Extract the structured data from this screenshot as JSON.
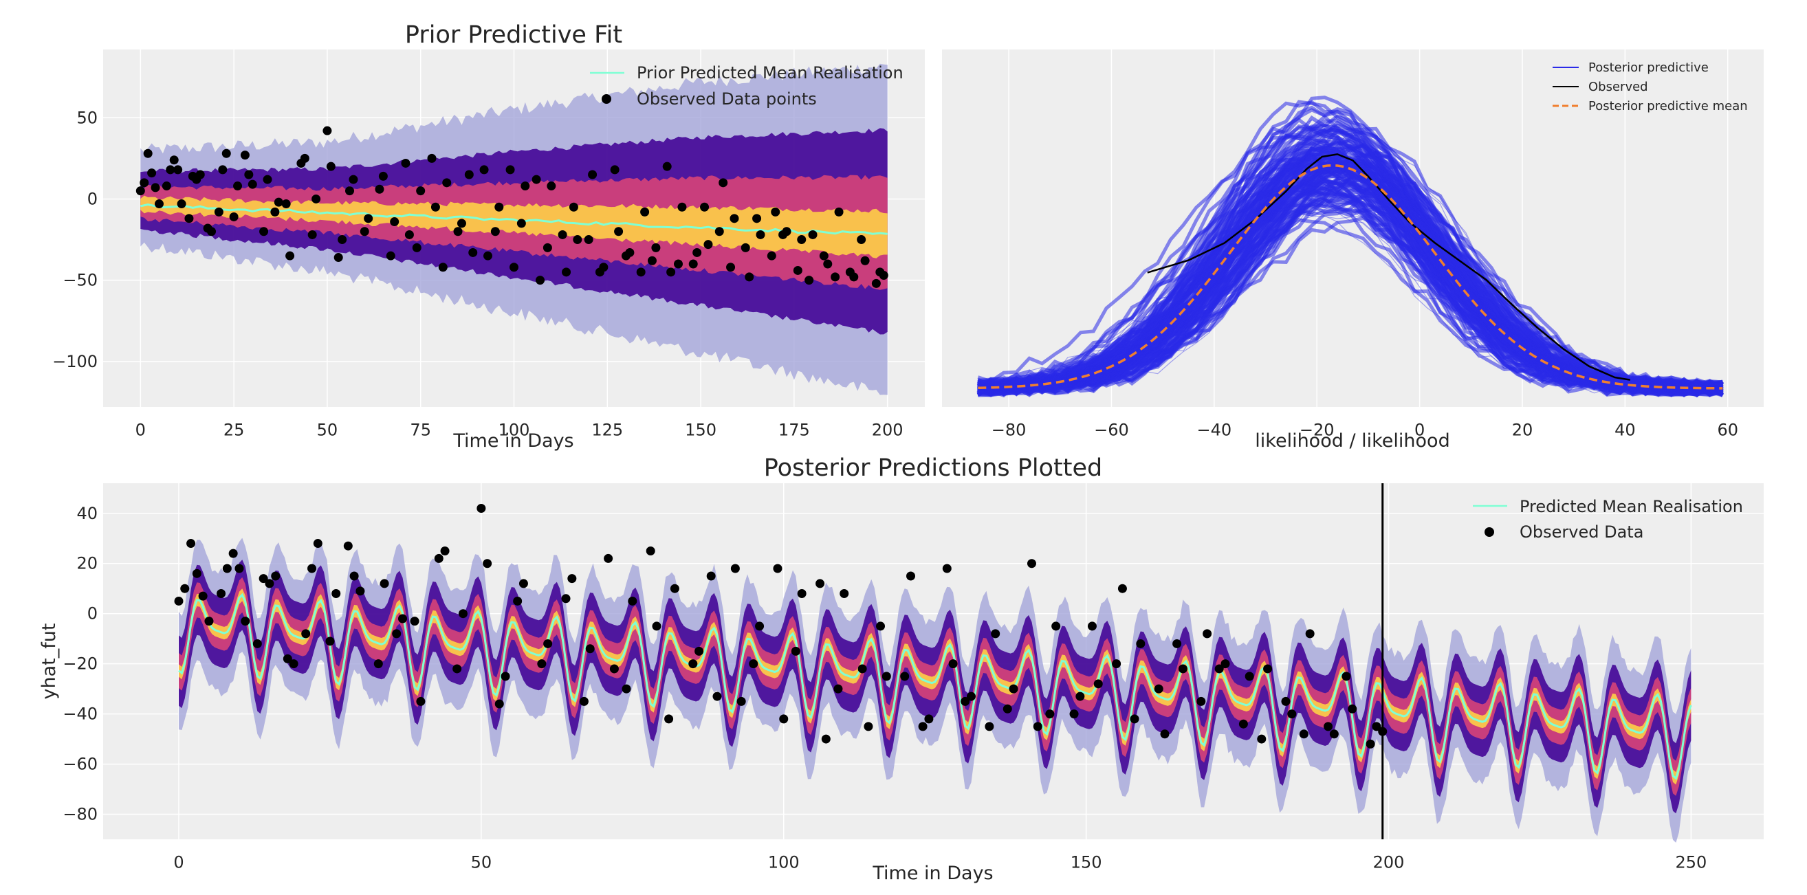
{
  "colors": {
    "panel_bg": "#eeeeee",
    "grid": "#ffffff",
    "mean_line": "#7fffd4",
    "observed": "#000000",
    "ppc_sample": "#2a2ae8",
    "ppc_mean": "#f07f2f",
    "fan_outer": "#9fa0d8",
    "fan_mid": "#4a0f9a",
    "fan_inner": "#d0407a",
    "fan_center": "#fcc84a"
  },
  "chart_data": [
    {
      "id": "prior",
      "type": "line",
      "title": "Prior Predictive Fit",
      "xlabel": "Time in Days",
      "ylabel": "",
      "xlim": [
        -10,
        210
      ],
      "ylim": [
        -128,
        92
      ],
      "xticks": [
        0,
        25,
        50,
        75,
        100,
        125,
        150,
        175,
        200
      ],
      "yticks": [
        50,
        0,
        -50,
        -100
      ],
      "ytick_labels": [
        "50",
        "0",
        "−50",
        "−100"
      ],
      "grid": true,
      "legend_position": "top-right",
      "legend": [
        "Prior Predicted Mean Realisation",
        "Observed Data points"
      ],
      "mean": {
        "x": [
          0,
          200
        ],
        "y": [
          -4,
          -22
        ]
      },
      "band": {
        "x": [
          0,
          50,
          100,
          150,
          200
        ],
        "lower": [
          -28,
          -45,
          -70,
          -95,
          -120
        ],
        "upper": [
          30,
          35,
          55,
          72,
          82
        ]
      },
      "observed": {
        "x": [
          0,
          1,
          2,
          3,
          4,
          5,
          7,
          8,
          9,
          10,
          11,
          13,
          14,
          15,
          16,
          18,
          19,
          21,
          22,
          23,
          25,
          26,
          28,
          29,
          30,
          33,
          34,
          36,
          37,
          39,
          40,
          43,
          44,
          46,
          47,
          50,
          51,
          53,
          54,
          56,
          57,
          60,
          61,
          64,
          65,
          67,
          68,
          71,
          72,
          74,
          75,
          78,
          79,
          81,
          82,
          85,
          86,
          88,
          89,
          92,
          93,
          95,
          96,
          99,
          100,
          102,
          103,
          106,
          107,
          109,
          110,
          113,
          114,
          116,
          117,
          120,
          121,
          123,
          124,
          127,
          128,
          130,
          131,
          134,
          135,
          137,
          138,
          141,
          142,
          144,
          145,
          148,
          149,
          151,
          152,
          155,
          156,
          158,
          159,
          162,
          163,
          165,
          166,
          169,
          170,
          172,
          173,
          176,
          177,
          179,
          180,
          183,
          184,
          186,
          187,
          190,
          191,
          193,
          194,
          197,
          198,
          199
        ],
        "y": [
          5,
          10,
          28,
          16,
          7,
          -3,
          8,
          18,
          24,
          18,
          -3,
          -12,
          14,
          12,
          15,
          -18,
          -20,
          -8,
          18,
          28,
          -11,
          8,
          27,
          15,
          9,
          -20,
          12,
          -8,
          -2,
          -3,
          -35,
          22,
          25,
          -22,
          0,
          42,
          20,
          -36,
          -25,
          5,
          12,
          -20,
          -12,
          6,
          14,
          -35,
          -14,
          22,
          -22,
          -30,
          5,
          25,
          -5,
          -42,
          10,
          -20,
          -15,
          15,
          -33,
          18,
          -35,
          -20,
          -5,
          18,
          -42,
          -15,
          8,
          12,
          -50,
          -30,
          8,
          -22,
          -45,
          -5,
          -25,
          -25,
          15,
          -45,
          -42,
          18,
          -20,
          -35,
          -33,
          -45,
          -8,
          -38,
          -30,
          20,
          -45,
          -40,
          -5,
          -40,
          -33,
          -5,
          -28,
          -20,
          10,
          -42,
          -12,
          -30,
          -48,
          -12,
          -22,
          -35,
          -8,
          -22,
          -20,
          -44,
          -25,
          -50,
          -22,
          -35,
          -40,
          -48,
          -8,
          -45,
          -48,
          -25,
          -38,
          -52,
          -45,
          -47
        ]
      }
    },
    {
      "id": "ppc",
      "type": "line",
      "title": "",
      "xlabel": "likelihood / likelihood",
      "ylabel": "",
      "xlim": [
        -93,
        67
      ],
      "ylim": [
        -0.0015,
        0.0275
      ],
      "xticks": [
        -80,
        -60,
        -40,
        -20,
        0,
        20,
        40,
        60
      ],
      "xtick_labels": [
        "−80",
        "−60",
        "−40",
        "−20",
        "0",
        "20",
        "40",
        "60"
      ],
      "grid": true,
      "legend_position": "top-right",
      "legend": [
        "Posterior predictive",
        "Observed",
        "Posterior predictive mean"
      ],
      "ppc_mean": {
        "mu": -17,
        "sigma": 20,
        "peak": 0.0181,
        "x_range": [
          -86,
          59
        ]
      },
      "observed": {
        "x": [
          -53,
          -45,
          -38,
          -32,
          -26,
          -22,
          -19,
          -16,
          -13,
          -10,
          -6,
          -2,
          3,
          8,
          13,
          18,
          23,
          28,
          33,
          38,
          41
        ],
        "y": [
          0.0094,
          0.0104,
          0.0118,
          0.0137,
          0.016,
          0.0178,
          0.0188,
          0.019,
          0.0185,
          0.0172,
          0.0153,
          0.0135,
          0.0118,
          0.0103,
          0.0088,
          0.0068,
          0.0049,
          0.0032,
          0.0018,
          0.0009,
          0.0007
        ]
      }
    },
    {
      "id": "posterior",
      "type": "line",
      "title": "Posterior Predictions Plotted",
      "xlabel": "Time in Days",
      "ylabel": "yhat_fut",
      "xlim": [
        -12.5,
        262
      ],
      "ylim": [
        -90,
        52
      ],
      "xticks": [
        0,
        50,
        100,
        150,
        200,
        250
      ],
      "yticks": [
        40,
        20,
        0,
        -20,
        -40,
        -60,
        -80
      ],
      "ytick_labels": [
        "40",
        "20",
        "0",
        "−20",
        "−40",
        "−60",
        "−80"
      ],
      "grid": true,
      "legend_position": "top-right",
      "legend": [
        "Predicted Mean Realisation",
        "Observed Data"
      ],
      "vline_x": 199,
      "model": {
        "offset": -4,
        "trend_per_day": -0.17,
        "amplitude": 20,
        "period_days": 6.5,
        "phase_day": 2
      },
      "observed": {
        "x": [
          0,
          1,
          2,
          3,
          4,
          5,
          7,
          8,
          9,
          10,
          11,
          13,
          14,
          15,
          16,
          18,
          19,
          21,
          22,
          23,
          25,
          26,
          28,
          29,
          30,
          33,
          34,
          36,
          37,
          39,
          40,
          43,
          44,
          46,
          47,
          50,
          51,
          53,
          54,
          56,
          57,
          60,
          61,
          64,
          65,
          67,
          68,
          71,
          72,
          74,
          75,
          78,
          79,
          81,
          82,
          85,
          86,
          88,
          89,
          92,
          93,
          95,
          96,
          99,
          100,
          102,
          103,
          106,
          107,
          109,
          110,
          113,
          114,
          116,
          117,
          120,
          121,
          123,
          124,
          127,
          128,
          130,
          131,
          134,
          135,
          137,
          138,
          141,
          142,
          144,
          145,
          148,
          149,
          151,
          152,
          155,
          156,
          158,
          159,
          162,
          163,
          165,
          166,
          169,
          170,
          172,
          173,
          176,
          177,
          179,
          180,
          183,
          184,
          186,
          187,
          190,
          191,
          193,
          194,
          197,
          198,
          199
        ],
        "y": [
          5,
          10,
          28,
          16,
          7,
          -3,
          8,
          18,
          24,
          18,
          -3,
          -12,
          14,
          12,
          15,
          -18,
          -20,
          -8,
          18,
          28,
          -11,
          8,
          27,
          15,
          9,
          -20,
          12,
          -8,
          -2,
          -3,
          -35,
          22,
          25,
          -22,
          0,
          42,
          20,
          -36,
          -25,
          5,
          12,
          -20,
          -12,
          6,
          14,
          -35,
          -14,
          22,
          -22,
          -30,
          5,
          25,
          -5,
          -42,
          10,
          -20,
          -15,
          15,
          -33,
          18,
          -35,
          -20,
          -5,
          18,
          -42,
          -15,
          8,
          12,
          -50,
          -30,
          8,
          -22,
          -45,
          -5,
          -25,
          -25,
          15,
          -45,
          -42,
          18,
          -20,
          -35,
          -33,
          -45,
          -8,
          -38,
          -30,
          20,
          -45,
          -40,
          -5,
          -40,
          -33,
          -5,
          -28,
          -20,
          10,
          -42,
          -12,
          -30,
          -48,
          -12,
          -22,
          -35,
          -8,
          -22,
          -20,
          -44,
          -25,
          -50,
          -22,
          -35,
          -40,
          -48,
          -8,
          -45,
          -48,
          -25,
          -38,
          -52,
          -45,
          -47
        ]
      }
    }
  ]
}
